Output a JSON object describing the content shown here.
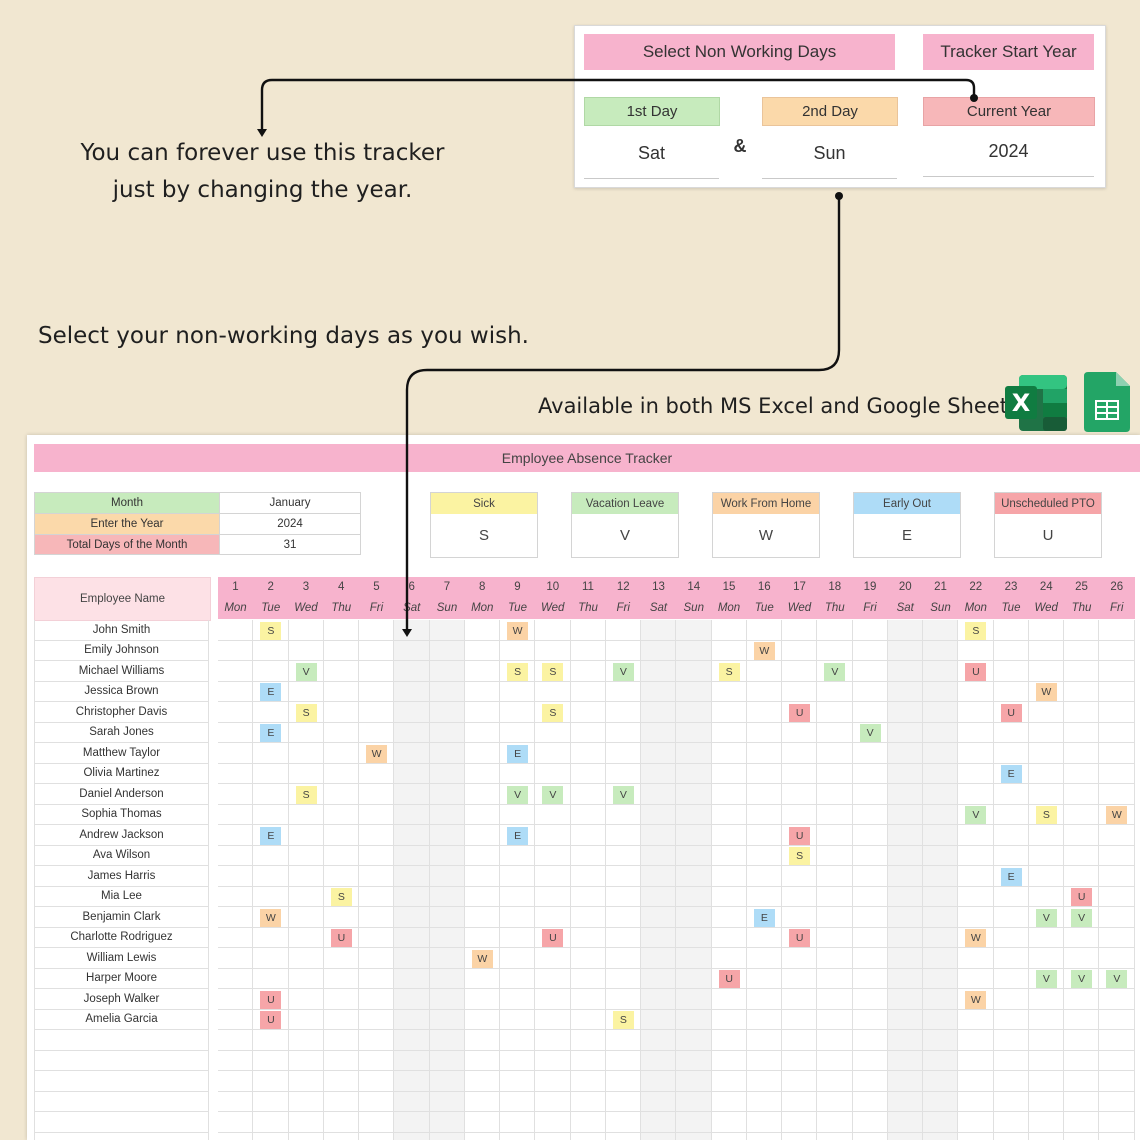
{
  "settings": {
    "select_header": "Select Non Working Days",
    "tracker_header": "Tracker Start Year",
    "first_day_label": "1st Day",
    "second_day_label": "2nd Day",
    "current_year_label": "Current Year",
    "first_day_value": "Sat",
    "second_day_value": "Sun",
    "ampersand": "&",
    "current_year_value": "2024"
  },
  "callouts": {
    "forever_line1": "You can forever use this tracker",
    "forever_line2": "just by changing the year.",
    "nonworking": "Select your non-working days as you wish.",
    "available": "Available in both MS Excel and Google Sheets"
  },
  "colors": {
    "pink": "#f7b3cd",
    "green": "#c7ebbd",
    "peach": "#fbd9aa",
    "salmon": "#f7b7b9",
    "yellow": "#fbf3a2",
    "blue": "#aedcf7",
    "excel": "#1f7346",
    "sheets": "#23a566",
    "S": "#fbf3a2",
    "V": "#c7ebbd",
    "W": "#fbd3a6",
    "E": "#aedcf7",
    "U": "#f6a5a8"
  },
  "sheet": {
    "title": "Employee Absence Tracker",
    "info": [
      {
        "label": "Month",
        "value": "January",
        "color": "#c7ebbd"
      },
      {
        "label": "Enter the Year",
        "value": "2024",
        "color": "#fbd9aa"
      },
      {
        "label": "Total Days of the Month",
        "value": "31",
        "color": "#f7b7b9"
      }
    ],
    "legend": [
      {
        "label": "Sick",
        "code": "S",
        "color": "#fbf3a2"
      },
      {
        "label": "Vacation Leave",
        "code": "V",
        "color": "#c7ebbd"
      },
      {
        "label": "Work From Home",
        "code": "W",
        "color": "#fbd3a6"
      },
      {
        "label": "Early Out",
        "code": "E",
        "color": "#aedcf7"
      },
      {
        "label": "Unscheduled PTO",
        "code": "U",
        "color": "#f6a5a8"
      }
    ],
    "name_header": "Employee Name",
    "days": [
      {
        "n": "1",
        "w": "Mon"
      },
      {
        "n": "2",
        "w": "Tue"
      },
      {
        "n": "3",
        "w": "Wed"
      },
      {
        "n": "4",
        "w": "Thu"
      },
      {
        "n": "5",
        "w": "Fri"
      },
      {
        "n": "6",
        "w": "Sat"
      },
      {
        "n": "7",
        "w": "Sun"
      },
      {
        "n": "8",
        "w": "Mon"
      },
      {
        "n": "9",
        "w": "Tue"
      },
      {
        "n": "10",
        "w": "Wed"
      },
      {
        "n": "11",
        "w": "Thu"
      },
      {
        "n": "12",
        "w": "Fri"
      },
      {
        "n": "13",
        "w": "Sat"
      },
      {
        "n": "14",
        "w": "Sun"
      },
      {
        "n": "15",
        "w": "Mon"
      },
      {
        "n": "16",
        "w": "Tue"
      },
      {
        "n": "17",
        "w": "Wed"
      },
      {
        "n": "18",
        "w": "Thu"
      },
      {
        "n": "19",
        "w": "Fri"
      },
      {
        "n": "20",
        "w": "Sat"
      },
      {
        "n": "21",
        "w": "Sun"
      },
      {
        "n": "22",
        "w": "Mon"
      },
      {
        "n": "23",
        "w": "Tue"
      },
      {
        "n": "24",
        "w": "Wed"
      },
      {
        "n": "25",
        "w": "Thu"
      },
      {
        "n": "26",
        "w": "Fri"
      }
    ],
    "employees": [
      {
        "name": "John Smith",
        "marks": {
          "2": "S",
          "9": "W",
          "22": "S"
        }
      },
      {
        "name": "Emily Johnson",
        "marks": {
          "16": "W"
        }
      },
      {
        "name": "Michael Williams",
        "marks": {
          "3": "V",
          "9": "S",
          "10": "S",
          "12": "V",
          "15": "S",
          "18": "V",
          "22": "U"
        }
      },
      {
        "name": "Jessica Brown",
        "marks": {
          "2": "E",
          "24": "W"
        }
      },
      {
        "name": "Christopher Davis",
        "marks": {
          "3": "S",
          "10": "S",
          "17": "U",
          "23": "U"
        }
      },
      {
        "name": "Sarah Jones",
        "marks": {
          "2": "E",
          "19": "V"
        }
      },
      {
        "name": "Matthew Taylor",
        "marks": {
          "5": "W",
          "9": "E"
        }
      },
      {
        "name": "Olivia Martinez",
        "marks": {
          "23": "E"
        }
      },
      {
        "name": "Daniel Anderson",
        "marks": {
          "3": "S",
          "9": "V",
          "10": "V",
          "12": "V"
        }
      },
      {
        "name": "Sophia Thomas",
        "marks": {
          "22": "V",
          "24": "S",
          "26": "W"
        }
      },
      {
        "name": "Andrew Jackson",
        "marks": {
          "2": "E",
          "9": "E",
          "17": "U"
        }
      },
      {
        "name": "Ava Wilson",
        "marks": {
          "17": "S"
        }
      },
      {
        "name": "James Harris",
        "marks": {
          "23": "E"
        }
      },
      {
        "name": "Mia Lee",
        "marks": {
          "4": "S",
          "25": "U"
        }
      },
      {
        "name": "Benjamin Clark",
        "marks": {
          "2": "W",
          "16": "E",
          "24": "V",
          "25": "V"
        }
      },
      {
        "name": "Charlotte Rodriguez",
        "marks": {
          "4": "U",
          "10": "U",
          "17": "U",
          "22": "W"
        }
      },
      {
        "name": "William Lewis",
        "marks": {
          "8": "W"
        }
      },
      {
        "name": "Harper Moore",
        "marks": {
          "15": "U",
          "24": "V",
          "25": "V",
          "26": "V"
        }
      },
      {
        "name": "Joseph Walker",
        "marks": {
          "2": "U",
          "22": "W"
        }
      },
      {
        "name": "Amelia Garcia",
        "marks": {
          "2": "U",
          "12": "S"
        }
      },
      {
        "name": "",
        "marks": {}
      },
      {
        "name": "",
        "marks": {}
      },
      {
        "name": "",
        "marks": {}
      },
      {
        "name": "",
        "marks": {}
      },
      {
        "name": "",
        "marks": {}
      },
      {
        "name": "",
        "marks": {}
      }
    ]
  }
}
